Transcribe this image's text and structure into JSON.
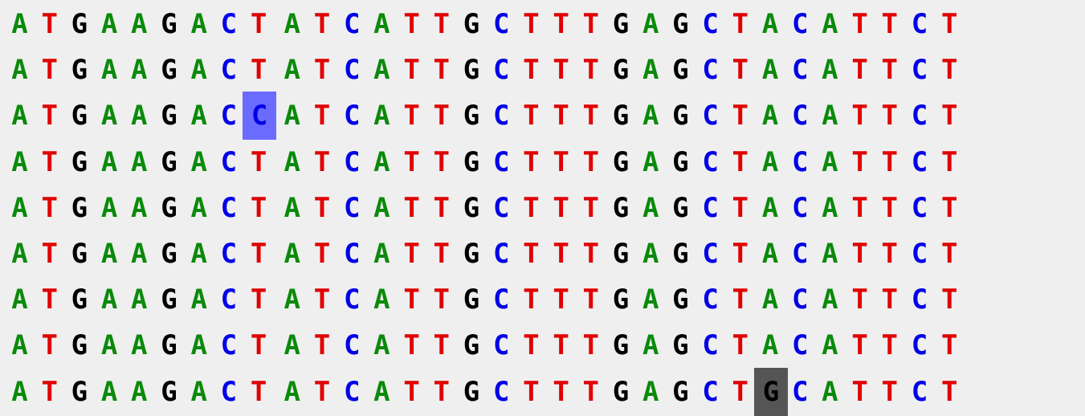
{
  "colors": {
    "A": "#0a8a0a",
    "T": "#e00000",
    "G": "#000000",
    "C": "#0000e8",
    "background": "#efefef",
    "highlight_blue": "#6b6bff",
    "highlight_gray": "#555555"
  },
  "alignment": {
    "rows": [
      "ATGAAGACTATCATTGCTTTGAGCTACATTCT",
      "ATGAAGACTATCATTGCTTTGAGCTACATTCT",
      "ATGAAGACCATCATTGCTTTGAGCTACATTCT",
      "ATGAAGACTATCATTGCTTTGAGCTACATTCT",
      "ATGAAGACTATCATTGCTTTGAGCTACATTCT",
      "ATGAAGACTATCATTGCTTTGAGCTACATTCT",
      "ATGAAGACTATCATTGCTTTGAGCTACATTCT",
      "ATGAAGACTATCATTGCTTTGAGCTACATTCT",
      "ATGAAGACTATCATTGCTTTGAGCTGCATTCT"
    ],
    "highlights": [
      {
        "row": 2,
        "col": 8,
        "color": "highlight_blue"
      },
      {
        "row": 8,
        "col": 25,
        "color": "highlight_gray"
      }
    ]
  }
}
